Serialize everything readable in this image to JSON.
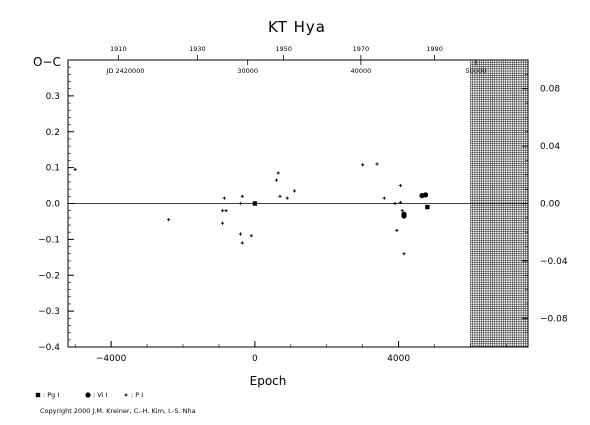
{
  "chart_data": {
    "type": "scatter",
    "title": "KT Hya",
    "xlabel": "Epoch",
    "ylabel": "O−C",
    "x_range": [
      -5200,
      7600
    ],
    "y_range": [
      -0.4,
      0.4
    ],
    "right_axis_scale": 0.25,
    "zero_line": true,
    "x_ticks": [
      -4000,
      0,
      4000
    ],
    "y_ticks": [
      -0.4,
      -0.3,
      -0.2,
      -0.1,
      0.0,
      0.1,
      0.2,
      0.3
    ],
    "y_tick_labels": [
      "−0.4",
      "−0.3",
      "−0.2",
      "−0.1",
      "0.0",
      "0.1",
      "0.2",
      "0.3"
    ],
    "right_ticks": [
      -0.08,
      -0.04,
      0.0,
      0.04,
      0.08
    ],
    "right_tick_labels": [
      "−0.08",
      "−0.04",
      "0.00",
      "0.04",
      "0.08"
    ],
    "x_tick_labels": [
      "−4000",
      "0",
      "4000"
    ],
    "top_axis": {
      "years": [
        "1910",
        "1930",
        "1950",
        "1970",
        "1990"
      ],
      "year_epochs": [
        -3800,
        -1600,
        800,
        2950,
        5000
      ],
      "jd_prefix": "JD 2420000",
      "jd_prefix_epoch": -3600,
      "jd_labels": [
        "30000",
        "40000",
        "50000"
      ],
      "jd_epochs": [
        -200,
        2950,
        6150
      ]
    },
    "hatched_from_epoch": 6000,
    "series": [
      {
        "name": ": Pg I",
        "marker": "square",
        "points": [
          {
            "x": 0,
            "y": 0.0
          },
          {
            "x": 4800,
            "y": -0.01
          }
        ]
      },
      {
        "name": ": Vi I",
        "marker": "circle",
        "points": [
          {
            "x": 4150,
            "y": -0.03
          },
          {
            "x": 4150,
            "y": -0.035
          },
          {
            "x": 4650,
            "y": 0.022
          },
          {
            "x": 4750,
            "y": 0.024
          }
        ]
      },
      {
        "name": ": P I",
        "marker": "plus",
        "points": [
          {
            "x": -5000,
            "y": 0.095
          },
          {
            "x": -2400,
            "y": -0.045
          },
          {
            "x": -900,
            "y": -0.02
          },
          {
            "x": -900,
            "y": -0.055
          },
          {
            "x": -850,
            "y": 0.015
          },
          {
            "x": -800,
            "y": -0.02
          },
          {
            "x": -400,
            "y": 0.0
          },
          {
            "x": -400,
            "y": -0.085
          },
          {
            "x": -350,
            "y": -0.11
          },
          {
            "x": -350,
            "y": 0.02
          },
          {
            "x": -100,
            "y": -0.09
          },
          {
            "x": 600,
            "y": 0.065
          },
          {
            "x": 650,
            "y": 0.085
          },
          {
            "x": 700,
            "y": 0.02
          },
          {
            "x": 900,
            "y": 0.015
          },
          {
            "x": 1100,
            "y": 0.035
          },
          {
            "x": 3000,
            "y": 0.108
          },
          {
            "x": 3400,
            "y": 0.11
          },
          {
            "x": 3600,
            "y": 0.015
          },
          {
            "x": 3900,
            "y": 0.0
          },
          {
            "x": 3950,
            "y": -0.075
          },
          {
            "x": 4050,
            "y": 0.05
          },
          {
            "x": 4050,
            "y": 0.003
          },
          {
            "x": 4100,
            "y": -0.02
          },
          {
            "x": 4150,
            "y": -0.14
          }
        ]
      }
    ],
    "copyright": "Copyright 2000 J.M. Kreiner, C.-H. Kim, I.-S. Nha"
  }
}
